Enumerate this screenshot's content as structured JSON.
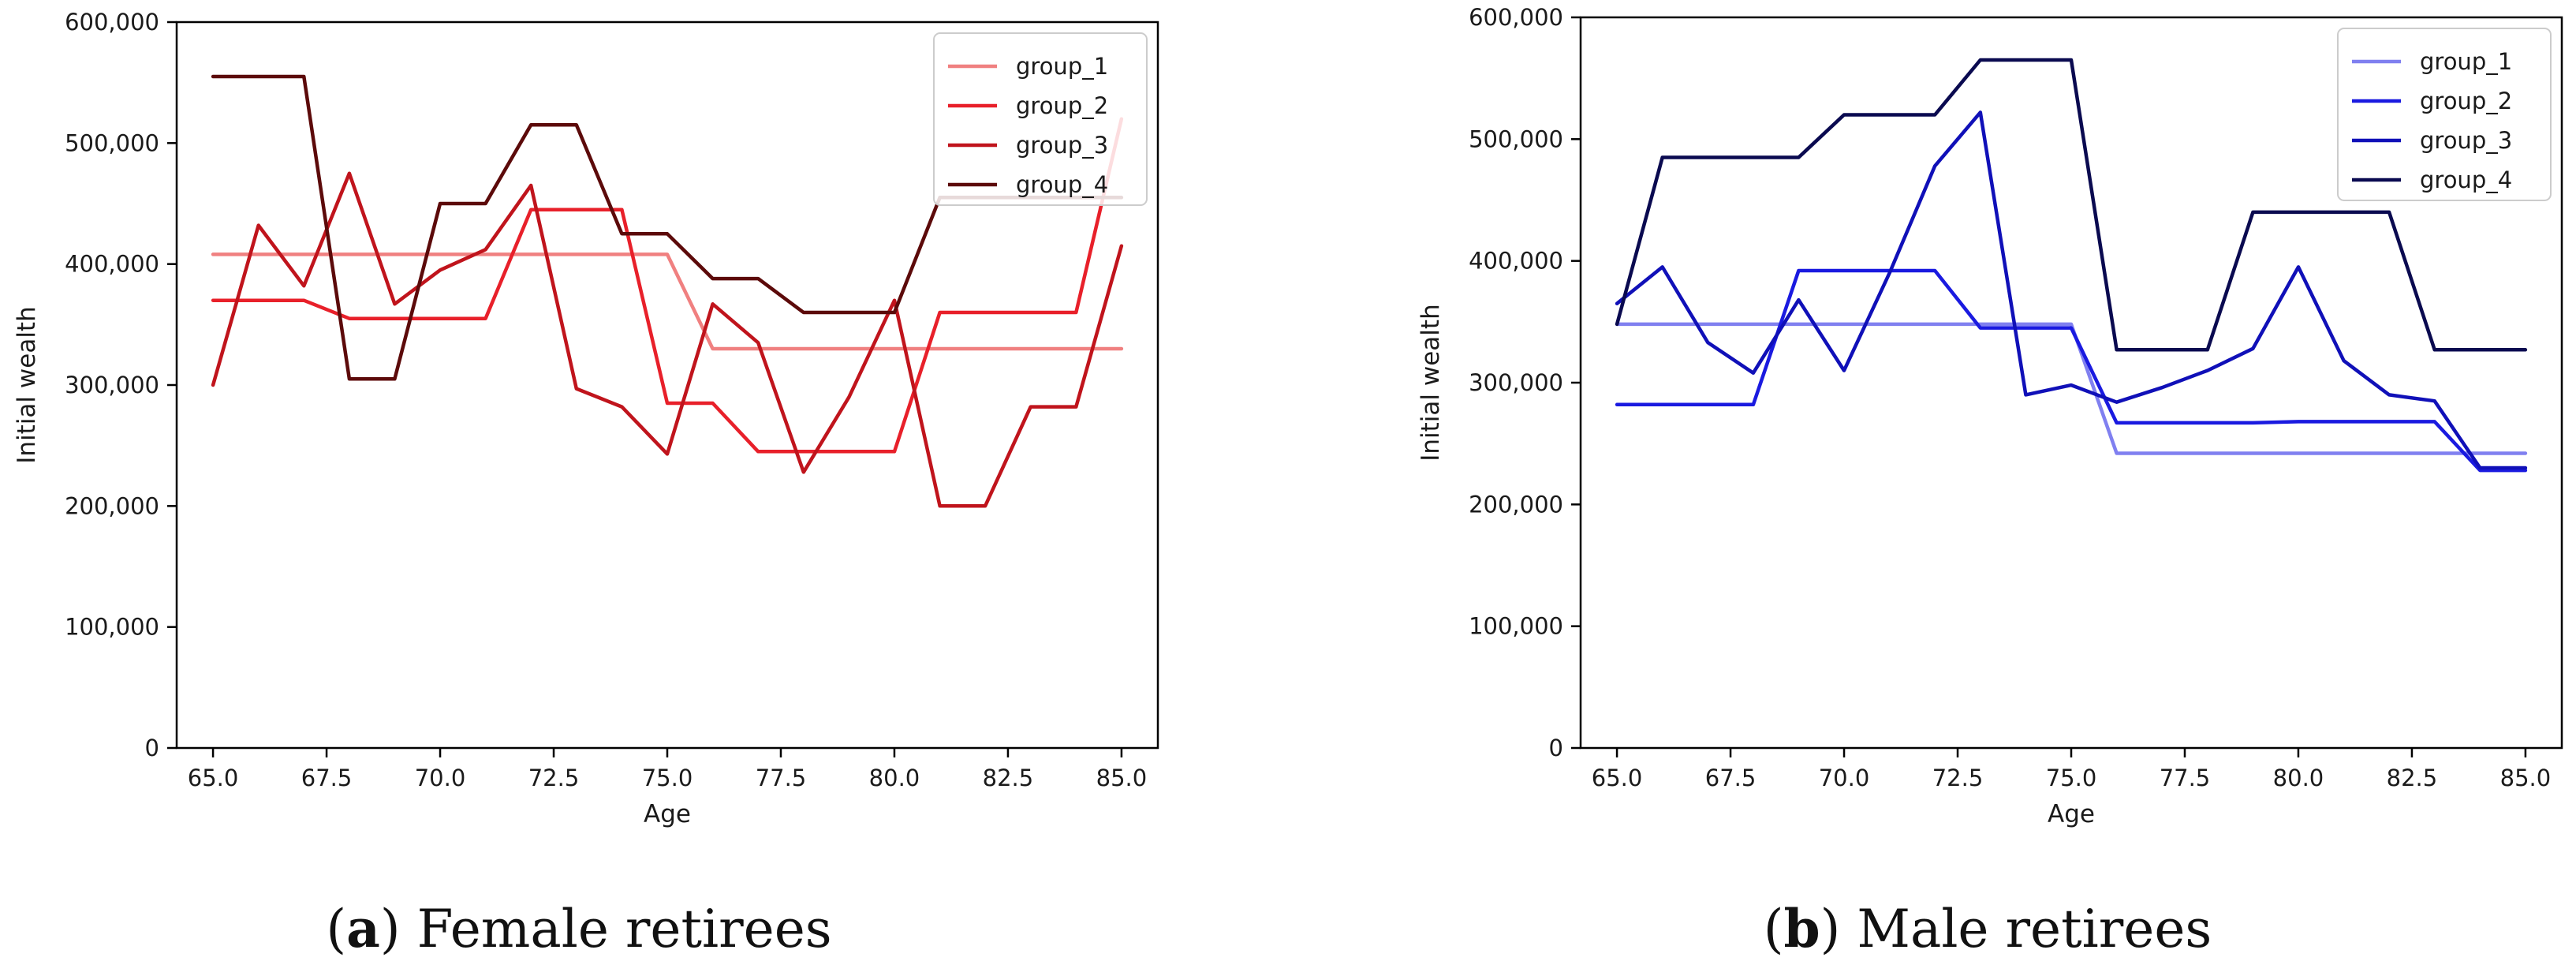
{
  "chart_data": [
    {
      "type": "line",
      "caption_letter": "a",
      "caption_text": "Female retirees",
      "xlabel": "Age",
      "ylabel": "Initial wealth",
      "xlim": [
        64.2,
        85.8
      ],
      "ylim": [
        0,
        600000
      ],
      "xticks": [
        65.0,
        67.5,
        70.0,
        72.5,
        75.0,
        77.5,
        80.0,
        82.5,
        85.0
      ],
      "xtick_labels": [
        "65.0",
        "67.5",
        "70.0",
        "72.5",
        "75.0",
        "77.5",
        "80.0",
        "82.5",
        "85.0"
      ],
      "yticks": [
        0,
        100000,
        200000,
        300000,
        400000,
        500000,
        600000
      ],
      "ytick_labels": [
        "0",
        "100,000",
        "200,000",
        "300,000",
        "400,000",
        "500,000",
        "600,000"
      ],
      "legend_position": "top-right",
      "x": [
        65,
        66,
        67,
        68,
        69,
        70,
        71,
        72,
        73,
        74,
        75,
        76,
        77,
        78,
        79,
        80,
        81,
        82,
        83,
        84,
        85
      ],
      "series": [
        {
          "name": "group_1",
          "color": "#f08080",
          "values": [
            408000,
            408000,
            408000,
            408000,
            408000,
            408000,
            408000,
            408000,
            408000,
            408000,
            408000,
            330000,
            330000,
            330000,
            330000,
            330000,
            330000,
            330000,
            330000,
            330000,
            330000
          ]
        },
        {
          "name": "group_2",
          "color": "#e8202a",
          "values": [
            370000,
            370000,
            370000,
            355000,
            355000,
            355000,
            355000,
            445000,
            445000,
            445000,
            285000,
            285000,
            245000,
            245000,
            245000,
            245000,
            360000,
            360000,
            360000,
            360000,
            520000
          ]
        },
        {
          "name": "group_3",
          "color": "#c0141c",
          "values": [
            300000,
            432000,
            382000,
            475000,
            367000,
            395000,
            412000,
            465000,
            297000,
            282000,
            243000,
            367000,
            335000,
            228000,
            290000,
            370000,
            200000,
            200000,
            282000,
            282000,
            415000
          ]
        },
        {
          "name": "group_4",
          "color": "#5c0a0a",
          "values": [
            555000,
            555000,
            555000,
            305000,
            305000,
            450000,
            450000,
            515000,
            515000,
            425000,
            425000,
            388000,
            388000,
            360000,
            360000,
            360000,
            455000,
            455000,
            455000,
            455000,
            455000
          ]
        }
      ]
    },
    {
      "type": "line",
      "caption_letter": "b",
      "caption_text": "Male retirees",
      "xlabel": "Age",
      "ylabel": "Initial wealth",
      "xlim": [
        64.2,
        85.8
      ],
      "ylim": [
        0,
        600000
      ],
      "xticks": [
        65.0,
        67.5,
        70.0,
        72.5,
        75.0,
        77.5,
        80.0,
        82.5,
        85.0
      ],
      "xtick_labels": [
        "65.0",
        "67.5",
        "70.0",
        "72.5",
        "75.0",
        "77.5",
        "80.0",
        "82.5",
        "85.0"
      ],
      "yticks": [
        0,
        100000,
        200000,
        300000,
        400000,
        500000,
        600000
      ],
      "ytick_labels": [
        "0",
        "100,000",
        "200,000",
        "300,000",
        "400,000",
        "500,000",
        "600,000"
      ],
      "legend_position": "top-right",
      "x": [
        65,
        66,
        67,
        68,
        69,
        70,
        71,
        72,
        73,
        74,
        75,
        76,
        77,
        78,
        79,
        80,
        81,
        82,
        83,
        84,
        85
      ],
      "series": [
        {
          "name": "group_1",
          "color": "#8080f0",
          "values": [
            348000,
            348000,
            348000,
            348000,
            348000,
            348000,
            348000,
            348000,
            348000,
            348000,
            348000,
            242000,
            242000,
            242000,
            242000,
            242000,
            242000,
            242000,
            242000,
            242000,
            242000
          ]
        },
        {
          "name": "group_2",
          "color": "#1a1ae0",
          "values": [
            282000,
            282000,
            282000,
            282000,
            392000,
            392000,
            392000,
            392000,
            345000,
            345000,
            345000,
            267000,
            267000,
            267000,
            267000,
            268000,
            268000,
            268000,
            268000,
            228000,
            228000
          ]
        },
        {
          "name": "group_3",
          "color": "#1010b8",
          "values": [
            365000,
            395000,
            333000,
            308000,
            368000,
            310000,
            390000,
            478000,
            522000,
            290000,
            298000,
            284000,
            296000,
            310000,
            328000,
            395000,
            318000,
            290000,
            285000,
            230000,
            230000
          ]
        },
        {
          "name": "group_4",
          "color": "#0a0a50",
          "values": [
            348000,
            485000,
            485000,
            485000,
            485000,
            520000,
            520000,
            520000,
            565000,
            565000,
            565000,
            327000,
            327000,
            327000,
            440000,
            440000,
            440000,
            440000,
            327000,
            327000,
            327000
          ]
        }
      ]
    }
  ]
}
